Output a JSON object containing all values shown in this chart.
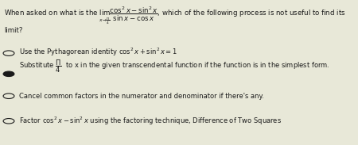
{
  "bg_color": "#e8e8d8",
  "text_color": "#1a1a1a",
  "title_line1": "When asked on what is the $\\lim_{x \\to \\frac{\\Pi}{4}} \\dfrac{\\cos^2 x - \\sin^2 x}{\\sin x - \\cos x}$, which of the following process is not useful to find its",
  "title_line2": "limit?",
  "option_a_circle": true,
  "option_a": "Use the Pythagorean identity $\\cos^2 x + \\sin^2 x = 1$",
  "option_b_circle": true,
  "option_b_selected": true,
  "option_b_label": "Substitute $\\dfrac{\\Pi}{4}$ to x in the given transcendental function if the function is in the simplest form.",
  "option_c_circle": true,
  "option_c": "Cancel common factors in the numerator and denominator if there's any.",
  "option_d_circle": true,
  "option_d": "Factor $\\cos^2 x - \\sin^2 x$ using the factoring technique, Difference of Two Squares"
}
